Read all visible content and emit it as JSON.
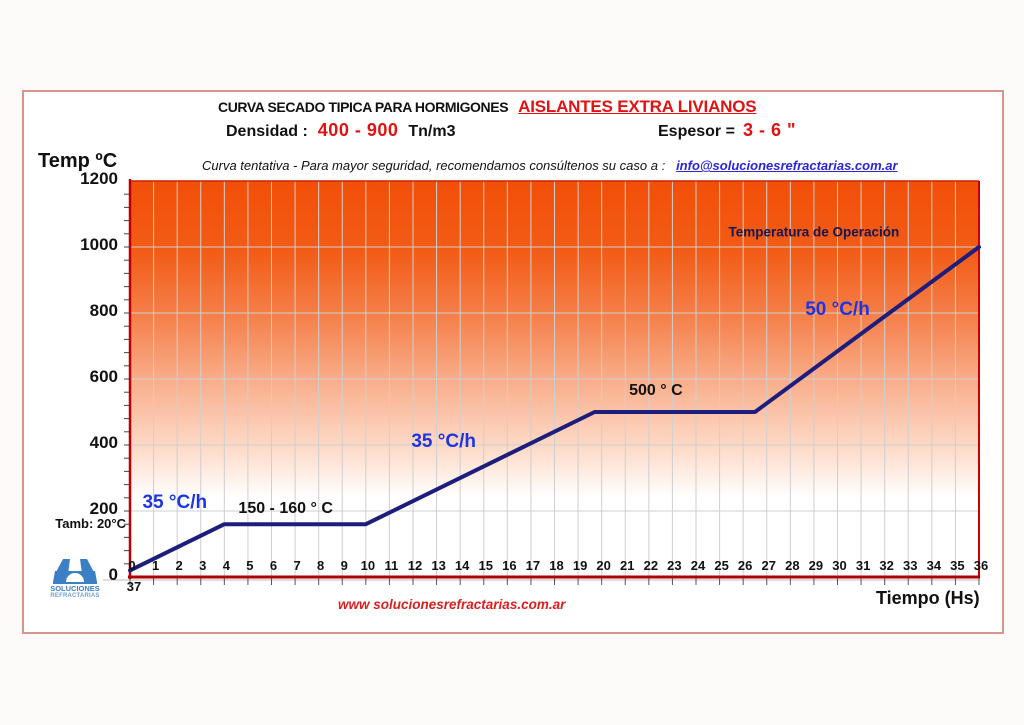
{
  "page": {
    "title_black": "CURVA SECADO TIPICA PARA HORMIGONES",
    "title_red": "AISLANTES EXTRA LIVIANOS",
    "density_label": "Densidad :",
    "density_value": "400 - 900",
    "density_unit": "Tn/m3",
    "thickness_label": "Espesor =",
    "thickness_value": "3 - 6 \"",
    "note_text": "Curva tentativa - Para mayor seguridad, recomendamos consúltenos su caso a :",
    "note_email": "info@solucionesrefractarias.com.ar",
    "y_axis_title": "Temp ºC",
    "x_axis_title": "Tiempo (Hs)",
    "ambient_label": "Tamb: 20°C",
    "footer_url": "www solucionesrefractarias.com.ar",
    "logo_line1": "SOLUCIONES",
    "logo_line2": "REFRACTARIAS"
  },
  "colors": {
    "accent_red": "#e21212",
    "axis_red": "#c00000",
    "curve_navy": "#1d1d7c",
    "rate_blue": "#1d35e0",
    "operation_navy": "#17174f",
    "grid_gray": "#cfcfcf",
    "gradient_top": "#f24f08",
    "gradient_bottom": "#ffffff",
    "logo_blue": "#3b7fc4",
    "frame_border": "#d9958c"
  },
  "chart_data": {
    "type": "line",
    "title": "CURVA SECADO TIPICA PARA HORMIGONES AISLANTES EXTRA LIVIANOS",
    "xlabel": "Tiempo (Hs)",
    "ylabel": "Temp ºC",
    "xlim": [
      0,
      36
    ],
    "ylim": [
      0,
      1200
    ],
    "grid": true,
    "start_temperature_c": 20,
    "x": [
      0,
      4,
      10,
      19.7,
      26.5,
      36
    ],
    "y": [
      20,
      160,
      160,
      500,
      500,
      1000
    ],
    "segments": [
      {
        "from_h": 0,
        "to_h": 4,
        "rate": "35 °C/h",
        "from_temp_c": 20,
        "to_temp_c": 160
      },
      {
        "from_h": 4,
        "to_h": 10,
        "hold": "150 - 160 ° C"
      },
      {
        "from_h": 10,
        "to_h": 19.7,
        "rate": "35 °C/h",
        "from_temp_c": 160,
        "to_temp_c": 500
      },
      {
        "from_h": 19.7,
        "to_h": 26.5,
        "hold": "500 ° C"
      },
      {
        "from_h": 26.5,
        "to_h": 36,
        "rate": "50 °C/h",
        "from_temp_c": 500,
        "to_temp_c": 1000
      }
    ],
    "y_ticks": [
      0,
      200,
      400,
      600,
      800,
      1000,
      1200
    ],
    "y_minor_tick_step": 40,
    "x_tick_labels": [
      "0",
      "1",
      "2",
      "3",
      "4",
      "5",
      "6",
      "7",
      "8",
      "9",
      "10",
      "11",
      "12",
      "13",
      "14",
      "15",
      "16",
      "17",
      "18",
      "19",
      "20",
      "21",
      "22",
      "23",
      "24",
      "25",
      "26",
      "27",
      "28",
      "29",
      "30",
      "31",
      "32",
      "33",
      "34",
      "35",
      "36"
    ],
    "x_wrap_label": "37",
    "annotations": [
      {
        "text": "35 °C/h",
        "kind": "rate",
        "x": 1.9,
        "y": 225
      },
      {
        "text": "150 - 160 ° C",
        "kind": "hold",
        "x": 6.6,
        "y": 205
      },
      {
        "text": "35 °C/h",
        "kind": "rate",
        "x": 13.3,
        "y": 410
      },
      {
        "text": "500 ° C",
        "kind": "hold",
        "x": 22.3,
        "y": 565
      },
      {
        "text": "50 °C/h",
        "kind": "rate",
        "x": 30.0,
        "y": 810
      },
      {
        "text": "Temperatura de  Operación",
        "kind": "op",
        "x": 29.0,
        "y": 1045
      }
    ]
  }
}
